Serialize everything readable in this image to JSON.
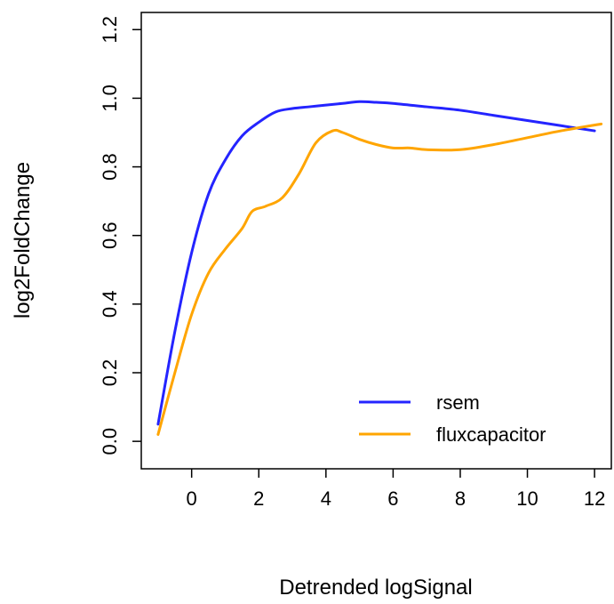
{
  "chart_data": {
    "type": "line",
    "title": "",
    "xlabel": "Detrended logSignal",
    "ylabel": "log2FoldChange",
    "xlim": [
      -1.5,
      12.5
    ],
    "ylim": [
      -0.08,
      1.25
    ],
    "xticks": [
      0,
      2,
      4,
      6,
      8,
      10,
      12
    ],
    "xtick_labels": [
      "0",
      "2",
      "4",
      "6",
      "8",
      "10",
      "12"
    ],
    "yticks": [
      0.0,
      0.2,
      0.4,
      0.6,
      0.8,
      1.0,
      1.2
    ],
    "ytick_labels": [
      "0.0",
      "0.2",
      "0.4",
      "0.6",
      "0.8",
      "1.0",
      "1.2"
    ],
    "grid": false,
    "legend_position": "bottom-right",
    "series": [
      {
        "name": "rsem",
        "color": "#2424ff",
        "x": [
          -1.0,
          -0.5,
          0.0,
          0.5,
          1.0,
          1.5,
          2.0,
          2.5,
          3.0,
          3.5,
          4.0,
          4.5,
          5.0,
          5.5,
          6.0,
          7.0,
          8.0,
          9.0,
          10.0,
          11.0,
          12.0
        ],
        "y": [
          0.05,
          0.32,
          0.55,
          0.72,
          0.82,
          0.89,
          0.93,
          0.96,
          0.97,
          0.975,
          0.98,
          0.985,
          0.99,
          0.988,
          0.985,
          0.975,
          0.965,
          0.95,
          0.935,
          0.92,
          0.905
        ]
      },
      {
        "name": "fluxcapacitor",
        "color": "#ffa500",
        "x": [
          -1.0,
          -0.5,
          0.0,
          0.5,
          1.0,
          1.5,
          1.8,
          2.2,
          2.7,
          3.2,
          3.7,
          4.2,
          4.5,
          5.0,
          5.5,
          6.0,
          6.5,
          7.0,
          8.0,
          9.0,
          10.0,
          11.0,
          12.2
        ],
        "y": [
          0.02,
          0.2,
          0.37,
          0.49,
          0.56,
          0.62,
          0.67,
          0.685,
          0.71,
          0.78,
          0.87,
          0.905,
          0.9,
          0.88,
          0.865,
          0.855,
          0.855,
          0.85,
          0.85,
          0.865,
          0.885,
          0.905,
          0.925
        ]
      }
    ]
  }
}
